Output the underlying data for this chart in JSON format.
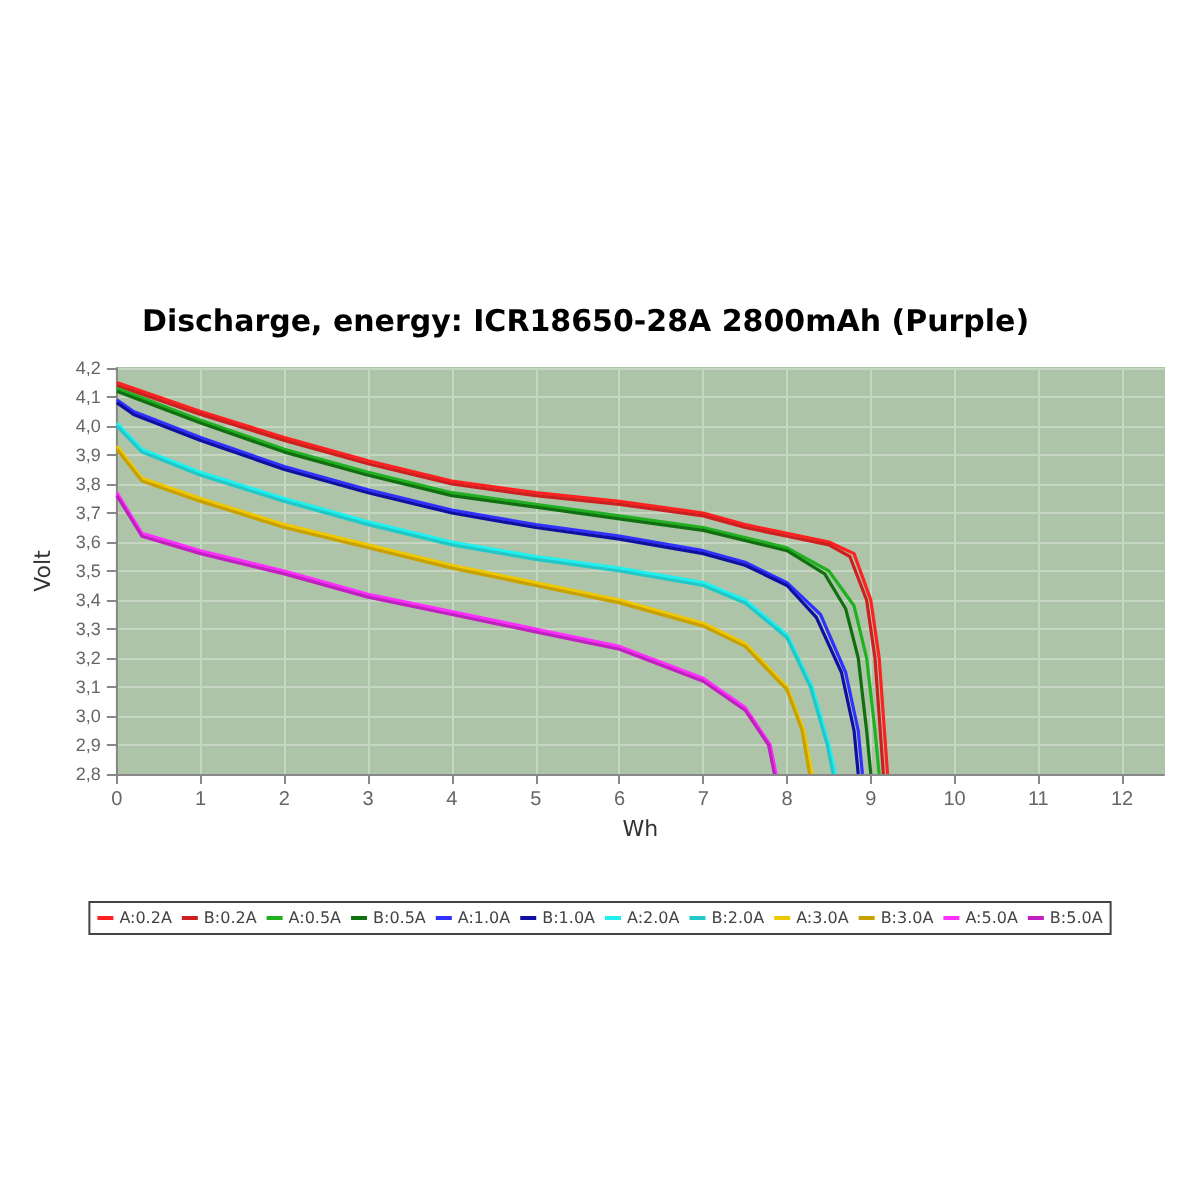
{
  "chart_data": {
    "type": "line",
    "title": "Discharge, energy: ICR18650-28A 2800mAh (Purple)",
    "xlabel": "Wh",
    "ylabel": "Volt",
    "xlim": [
      0,
      12.5
    ],
    "ylim": [
      2.8,
      4.2
    ],
    "xticks": [
      0,
      1,
      2,
      3,
      4,
      5,
      6,
      7,
      8,
      9,
      10,
      11,
      12
    ],
    "yticks": [
      {
        "value": 2.8,
        "label": "2,8"
      },
      {
        "value": 2.9,
        "label": "2,9"
      },
      {
        "value": 3.0,
        "label": "3,0"
      },
      {
        "value": 3.1,
        "label": "3,1"
      },
      {
        "value": 3.2,
        "label": "3,2"
      },
      {
        "value": 3.3,
        "label": "3,3"
      },
      {
        "value": 3.4,
        "label": "3,4"
      },
      {
        "value": 3.5,
        "label": "3,5"
      },
      {
        "value": 3.6,
        "label": "3,6"
      },
      {
        "value": 3.7,
        "label": "3,7"
      },
      {
        "value": 3.8,
        "label": "3,8"
      },
      {
        "value": 3.9,
        "label": "3,9"
      },
      {
        "value": 4.0,
        "label": "4,0"
      },
      {
        "value": 4.1,
        "label": "4,1"
      },
      {
        "value": 4.2,
        "label": "4,2"
      }
    ],
    "grid": true,
    "legend": "bottom",
    "marker": "none",
    "line_style": "solid",
    "series": [
      {
        "name": "A:0.2A",
        "color": "#ff2020",
        "x": [
          0,
          1,
          2,
          3,
          4,
          5,
          6,
          7,
          7.5,
          8,
          8.5,
          8.8,
          9.0,
          9.1,
          9.15,
          9.2
        ],
        "values": [
          4.15,
          4.05,
          3.96,
          3.88,
          3.81,
          3.77,
          3.74,
          3.7,
          3.66,
          3.63,
          3.6,
          3.56,
          3.4,
          3.2,
          3.0,
          2.8
        ]
      },
      {
        "name": "B:0.2A",
        "color": "#cc2020",
        "x": [
          0,
          1,
          2,
          3,
          4,
          5,
          6,
          7,
          7.5,
          8,
          8.5,
          8.75,
          8.95,
          9.05,
          9.1,
          9.15
        ],
        "values": [
          4.14,
          4.04,
          3.95,
          3.87,
          3.8,
          3.76,
          3.73,
          3.69,
          3.65,
          3.62,
          3.59,
          3.55,
          3.4,
          3.2,
          3.0,
          2.8
        ]
      },
      {
        "name": "A:0.5A",
        "color": "#20b020",
        "x": [
          0,
          1,
          2,
          3,
          4,
          5,
          6,
          7,
          8,
          8.5,
          8.8,
          8.95,
          9.05,
          9.1
        ],
        "values": [
          4.13,
          4.02,
          3.92,
          3.84,
          3.77,
          3.73,
          3.69,
          3.65,
          3.58,
          3.5,
          3.38,
          3.2,
          2.95,
          2.8
        ]
      },
      {
        "name": "B:0.5A",
        "color": "#107010",
        "x": [
          0,
          1,
          2,
          3,
          4,
          5,
          6,
          7,
          8,
          8.45,
          8.7,
          8.85,
          8.95,
          9.0
        ],
        "values": [
          4.12,
          4.01,
          3.91,
          3.83,
          3.76,
          3.72,
          3.68,
          3.64,
          3.57,
          3.49,
          3.37,
          3.2,
          2.95,
          2.8
        ]
      },
      {
        "name": "A:1.0A",
        "color": "#3030ff",
        "x": [
          0,
          0.2,
          1,
          2,
          3,
          4,
          5,
          6,
          7,
          7.5,
          8,
          8.4,
          8.7,
          8.85,
          8.9
        ],
        "values": [
          4.09,
          4.05,
          3.96,
          3.86,
          3.78,
          3.71,
          3.66,
          3.62,
          3.57,
          3.53,
          3.46,
          3.35,
          3.15,
          2.95,
          2.8
        ]
      },
      {
        "name": "B:1.0A",
        "color": "#1010a0",
        "x": [
          0,
          0.2,
          1,
          2,
          3,
          4,
          5,
          6,
          7,
          7.5,
          8,
          8.35,
          8.65,
          8.8,
          8.85
        ],
        "values": [
          4.08,
          4.04,
          3.95,
          3.85,
          3.77,
          3.7,
          3.65,
          3.61,
          3.56,
          3.52,
          3.45,
          3.34,
          3.15,
          2.95,
          2.8
        ]
      },
      {
        "name": "A:2.0A",
        "color": "#20f0f0",
        "x": [
          0,
          0.3,
          1,
          2,
          3,
          4,
          5,
          6,
          7,
          7.5,
          8,
          8.3,
          8.5,
          8.58
        ],
        "values": [
          4.01,
          3.92,
          3.84,
          3.75,
          3.67,
          3.6,
          3.55,
          3.51,
          3.46,
          3.4,
          3.28,
          3.1,
          2.9,
          2.8
        ]
      },
      {
        "name": "B:2.0A",
        "color": "#20c8c8",
        "x": [
          0,
          0.3,
          1,
          2,
          3,
          4,
          5,
          6,
          7,
          7.5,
          8,
          8.28,
          8.48,
          8.55
        ],
        "values": [
          4.0,
          3.91,
          3.83,
          3.74,
          3.66,
          3.59,
          3.54,
          3.5,
          3.45,
          3.39,
          3.27,
          3.1,
          2.9,
          2.8
        ]
      },
      {
        "name": "A:3.0A",
        "color": "#f0c800",
        "x": [
          0,
          0.3,
          1,
          2,
          3,
          4,
          5,
          6,
          7,
          7.5,
          8,
          8.2,
          8.3
        ],
        "values": [
          3.93,
          3.82,
          3.75,
          3.66,
          3.59,
          3.52,
          3.46,
          3.4,
          3.32,
          3.25,
          3.1,
          2.95,
          2.8
        ]
      },
      {
        "name": "B:3.0A",
        "color": "#c8a000",
        "x": [
          0,
          0.3,
          1,
          2,
          3,
          4,
          5,
          6,
          7,
          7.5,
          8,
          8.18,
          8.27
        ],
        "values": [
          3.92,
          3.81,
          3.74,
          3.65,
          3.58,
          3.51,
          3.45,
          3.39,
          3.31,
          3.24,
          3.09,
          2.95,
          2.8
        ]
      },
      {
        "name": "A:5.0A",
        "color": "#ff30ff",
        "x": [
          0,
          0.3,
          1,
          2,
          3,
          4,
          5,
          6,
          7,
          7.5,
          7.8,
          7.87
        ],
        "values": [
          3.77,
          3.63,
          3.57,
          3.5,
          3.42,
          3.36,
          3.3,
          3.24,
          3.13,
          3.03,
          2.9,
          2.8
        ]
      },
      {
        "name": "B:5.0A",
        "color": "#c020c0",
        "x": [
          0,
          0.3,
          1,
          2,
          3,
          4,
          5,
          6,
          7,
          7.5,
          7.78,
          7.85
        ],
        "values": [
          3.76,
          3.62,
          3.56,
          3.49,
          3.41,
          3.35,
          3.29,
          3.23,
          3.12,
          3.02,
          2.9,
          2.8
        ]
      }
    ]
  }
}
